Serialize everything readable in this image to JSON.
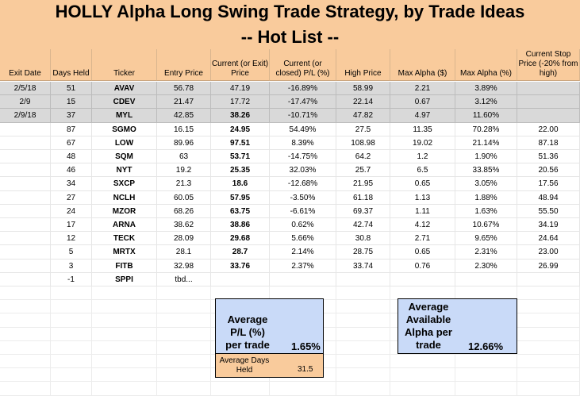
{
  "title": "HOLLY Alpha Long Swing Trade Strategy, by Trade Ideas",
  "subtitle": "-- Hot List --",
  "columns": [
    "Exit Date",
    "Days Held",
    "Ticker",
    "Entry Price",
    "Current (or Exit) Price",
    "Current (or closed) P/L (%)",
    "High Price",
    "Max Alpha ($)",
    "Max Alpha (%)",
    "Current Stop Price (-20% from high)"
  ],
  "rows": [
    {
      "exit": "2/5/18",
      "days": "51",
      "ticker": "AVAV",
      "entry": "56.78",
      "current": "47.19",
      "pl": "-16.89%",
      "high": "58.99",
      "alpha_d": "2.21",
      "alpha_p": "3.89%",
      "stop": "",
      "closed": true
    },
    {
      "exit": "2/9",
      "days": "15",
      "ticker": "CDEV",
      "entry": "21.47",
      "current": "17.72",
      "pl": "-17.47%",
      "high": "22.14",
      "alpha_d": "0.67",
      "alpha_p": "3.12%",
      "stop": "",
      "closed": true
    },
    {
      "exit": "2/9/18",
      "days": "37",
      "ticker": "MYL",
      "entry": "42.85",
      "current": "38.26",
      "pl": "-10.71%",
      "high": "47.82",
      "alpha_d": "4.97",
      "alpha_p": "11.60%",
      "stop": "",
      "closed": true
    },
    {
      "exit": "",
      "days": "87",
      "ticker": "SGMO",
      "entry": "16.15",
      "current": "24.95",
      "pl": "54.49%",
      "high": "27.5",
      "alpha_d": "11.35",
      "alpha_p": "70.28%",
      "stop": "22.00",
      "closed": false
    },
    {
      "exit": "",
      "days": "67",
      "ticker": "LOW",
      "entry": "89.96",
      "current": "97.51",
      "pl": "8.39%",
      "high": "108.98",
      "alpha_d": "19.02",
      "alpha_p": "21.14%",
      "stop": "87.18",
      "closed": false
    },
    {
      "exit": "",
      "days": "48",
      "ticker": "SQM",
      "entry": "63",
      "current": "53.71",
      "pl": "-14.75%",
      "high": "64.2",
      "alpha_d": "1.2",
      "alpha_p": "1.90%",
      "stop": "51.36",
      "closed": false
    },
    {
      "exit": "",
      "days": "46",
      "ticker": "NYT",
      "entry": "19.2",
      "current": "25.35",
      "pl": "32.03%",
      "high": "25.7",
      "alpha_d": "6.5",
      "alpha_p": "33.85%",
      "stop": "20.56",
      "closed": false
    },
    {
      "exit": "",
      "days": "34",
      "ticker": "SXCP",
      "entry": "21.3",
      "current": "18.6",
      "pl": "-12.68%",
      "high": "21.95",
      "alpha_d": "0.65",
      "alpha_p": "3.05%",
      "stop": "17.56",
      "closed": false
    },
    {
      "exit": "",
      "days": "27",
      "ticker": "NCLH",
      "entry": "60.05",
      "current": "57.95",
      "pl": "-3.50%",
      "high": "61.18",
      "alpha_d": "1.13",
      "alpha_p": "1.88%",
      "stop": "48.94",
      "closed": false
    },
    {
      "exit": "",
      "days": "24",
      "ticker": "MZOR",
      "entry": "68.26",
      "current": "63.75",
      "pl": "-6.61%",
      "high": "69.37",
      "alpha_d": "1.11",
      "alpha_p": "1.63%",
      "stop": "55.50",
      "closed": false
    },
    {
      "exit": "",
      "days": "17",
      "ticker": "ARNA",
      "entry": "38.62",
      "current": "38.86",
      "pl": "0.62%",
      "high": "42.74",
      "alpha_d": "4.12",
      "alpha_p": "10.67%",
      "stop": "34.19",
      "closed": false
    },
    {
      "exit": "",
      "days": "12",
      "ticker": "TECK",
      "entry": "28.09",
      "current": "29.68",
      "pl": "5.66%",
      "high": "30.8",
      "alpha_d": "2.71",
      "alpha_p": "9.65%",
      "stop": "24.64",
      "closed": false
    },
    {
      "exit": "",
      "days": "5",
      "ticker": "MRTX",
      "entry": "28.1",
      "current": "28.7",
      "pl": "2.14%",
      "high": "28.75",
      "alpha_d": "0.65",
      "alpha_p": "2.31%",
      "stop": "23.00",
      "closed": false
    },
    {
      "exit": "",
      "days": "3",
      "ticker": "FITB",
      "entry": "32.98",
      "current": "33.76",
      "pl": "2.37%",
      "high": "33.74",
      "alpha_d": "0.76",
      "alpha_p": "2.30%",
      "stop": "26.99",
      "closed": false
    },
    {
      "exit": "",
      "days": "-1",
      "ticker": "SPPI",
      "entry": "tbd...",
      "current": "",
      "pl": "",
      "high": "",
      "alpha_d": "",
      "alpha_p": "",
      "stop": "",
      "closed": false
    }
  ],
  "summary": {
    "avg_pl_label_1": "Average",
    "avg_pl_label_2": "P/L (%)",
    "avg_pl_label_3": "per trade",
    "avg_pl_value": "1.65%",
    "avg_days_label_1": "Average Days",
    "avg_days_label_2": "Held",
    "avg_days_value": "31.5",
    "avg_alpha_label_1": "Average",
    "avg_alpha_label_2": "Available",
    "avg_alpha_label_3": "Alpha per",
    "avg_alpha_label_4": "trade",
    "avg_alpha_value": "12.66%"
  },
  "colors": {
    "header_bg": "#f9cb9c",
    "closed_row_bg": "#d9d9d9",
    "summary_bg": "#c9daf8"
  }
}
